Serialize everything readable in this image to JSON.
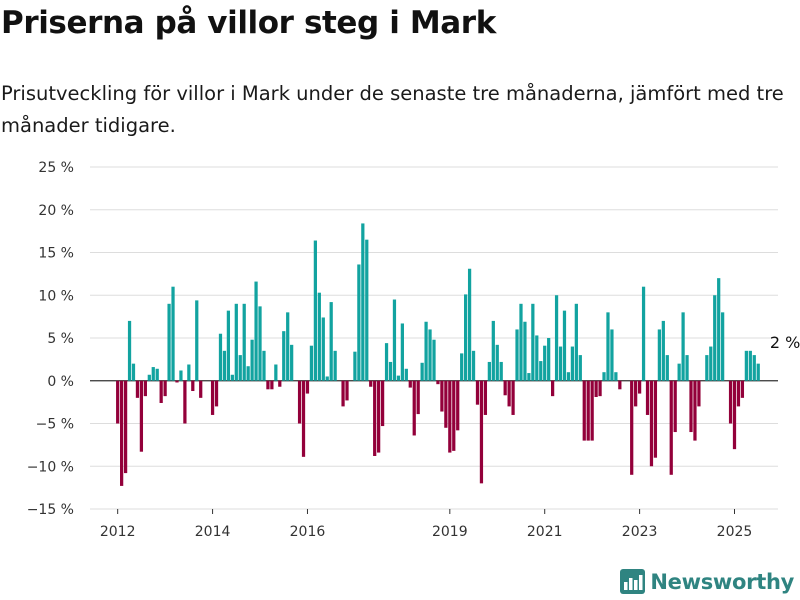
{
  "title": "Priserna på villor steg i Mark",
  "subtitle": "Prisutveckling för villor i Mark under de senaste tre månaderna, jämfört med tre månader tidigare.",
  "brand": "Newsworthy",
  "colors": {
    "positive": "#12a3a0",
    "negative": "#93003a",
    "grid": "#dddddd",
    "zero_line": "#333333",
    "brand": "#2f8481"
  },
  "chart_data": {
    "type": "bar",
    "ylim": [
      -15,
      25
    ],
    "yticks": [
      25,
      20,
      15,
      10,
      5,
      0,
      -5,
      -10,
      -15
    ],
    "ytick_labels": [
      "25 %",
      "20 %",
      "15 %",
      "10 %",
      "5 %",
      "0 %",
      "−5 %",
      "−10 %",
      "−15 %"
    ],
    "x_start": "2011-06",
    "x_end": "2025-12",
    "xticks": [
      {
        "label": "2012",
        "date": "2012-01"
      },
      {
        "label": "2014",
        "date": "2014-01"
      },
      {
        "label": "2016",
        "date": "2016-01"
      },
      {
        "label": "2019",
        "date": "2019-01"
      },
      {
        "label": "2021",
        "date": "2021-01"
      },
      {
        "label": "2023",
        "date": "2023-01"
      },
      {
        "label": "2025",
        "date": "2025-01"
      }
    ],
    "start_month": "2012-01",
    "values": [
      -5,
      -12.3,
      -10.8,
      7,
      2,
      -2,
      -8.3,
      -1.8,
      0.7,
      1.6,
      1.4,
      -2.6,
      -1.8,
      9,
      11,
      -0.2,
      1.2,
      -5,
      1.9,
      -1.2,
      9.4,
      -2,
      0,
      0,
      -4,
      -3,
      5.5,
      3.5,
      8.2,
      0.7,
      9,
      3,
      9,
      1.7,
      4.8,
      11.6,
      8.7,
      3.5,
      -1,
      -1,
      1.9,
      -0.7,
      5.8,
      8,
      4.2,
      0,
      -5,
      -8.9,
      -1.5,
      4.1,
      16.4,
      10.3,
      7.4,
      0.5,
      9.2,
      3.5,
      0,
      -3,
      -2.3,
      0,
      3.4,
      13.6,
      18.4,
      16.5,
      -0.7,
      -8.8,
      -8.4,
      -5.3,
      4.4,
      2.2,
      9.5,
      0.6,
      6.7,
      1.4,
      -0.8,
      -6.4,
      -3.9,
      2.1,
      6.9,
      6,
      4.8,
      -0.4,
      -3.6,
      -5.5,
      -8.4,
      -8.2,
      -5.8,
      3.2,
      10.1,
      13.1,
      3.5,
      -2.8,
      -12,
      -4,
      2.2,
      7,
      4.2,
      2.2,
      -1.7,
      -3,
      -4,
      6,
      9,
      6.9,
      0.9,
      9,
      5.3,
      2.3,
      4.1,
      5,
      -1.8,
      10,
      4,
      8.2,
      1,
      4,
      9,
      3,
      -7,
      -7,
      -7,
      -1.9,
      -1.8,
      1,
      8,
      6,
      1,
      -1,
      0,
      0,
      -11,
      -3,
      -1.5,
      11,
      -4,
      -10,
      -9,
      6,
      7,
      3,
      -11,
      -6,
      2,
      8,
      3,
      -6,
      -7,
      -3,
      0,
      3,
      4,
      10,
      12,
      8,
      0,
      -5,
      -8,
      -3,
      -2,
      3.5,
      3.5,
      3,
      2
    ],
    "annotation": {
      "text": "2 %",
      "index": 169
    }
  }
}
